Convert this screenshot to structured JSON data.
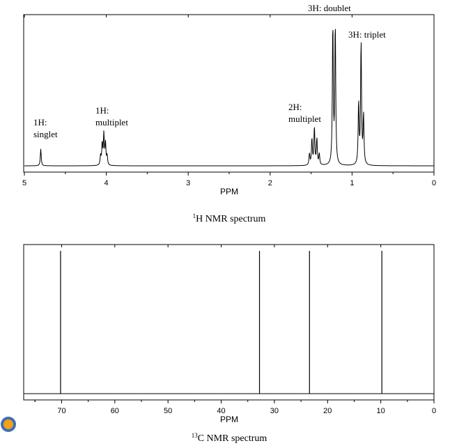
{
  "chart_data": [
    {
      "type": "line",
      "caption_sup": "1",
      "caption_text": "H NMR spectrum",
      "xlabel": "PPM",
      "xlim": [
        5,
        0
      ],
      "x_reversed": true,
      "grid": false,
      "ticks": [
        "5",
        "4",
        "3",
        "2",
        "1",
        "0"
      ],
      "tick_values": [
        5,
        4,
        3,
        2,
        1,
        0
      ],
      "peaks": [
        {
          "ppm": 4.8,
          "intensity": 0.12,
          "label_lines": [
            "1H:",
            "singlet"
          ]
        },
        {
          "ppm": 4.03,
          "intensity": 0.22,
          "label_lines": [
            "1H:",
            "multiplet"
          ],
          "lines": [
            4.07,
            4.05,
            4.03,
            4.01,
            3.99
          ]
        },
        {
          "ppm": 1.46,
          "intensity": 0.27,
          "label_lines": [
            "2H:",
            "multiplet"
          ],
          "lines": [
            1.52,
            1.49,
            1.46,
            1.43,
            1.4
          ]
        },
        {
          "ppm": 1.22,
          "intensity": 1.0,
          "label_lines": [
            "3H: doublet"
          ],
          "lines": [
            1.235,
            1.205
          ]
        },
        {
          "ppm": 0.89,
          "intensity": 0.88,
          "label_lines": [
            "3H: triplet"
          ],
          "lines": [
            0.92,
            0.89,
            0.86
          ]
        }
      ]
    },
    {
      "type": "bar",
      "caption_sup": "13",
      "caption_text": "C NMR spectrum",
      "xlabel": "PPM",
      "xlim": [
        77,
        0
      ],
      "x_reversed": true,
      "grid": false,
      "ticks": [
        "70",
        "60",
        "50",
        "40",
        "30",
        "20",
        "10",
        "0"
      ],
      "tick_values": [
        70,
        60,
        50,
        40,
        30,
        20,
        10,
        0
      ],
      "peaks": [
        {
          "ppm": 70.2,
          "intensity": 1.0
        },
        {
          "ppm": 32.8,
          "intensity": 1.0
        },
        {
          "ppm": 23.4,
          "intensity": 1.0
        },
        {
          "ppm": 9.8,
          "intensity": 1.0
        }
      ]
    }
  ]
}
